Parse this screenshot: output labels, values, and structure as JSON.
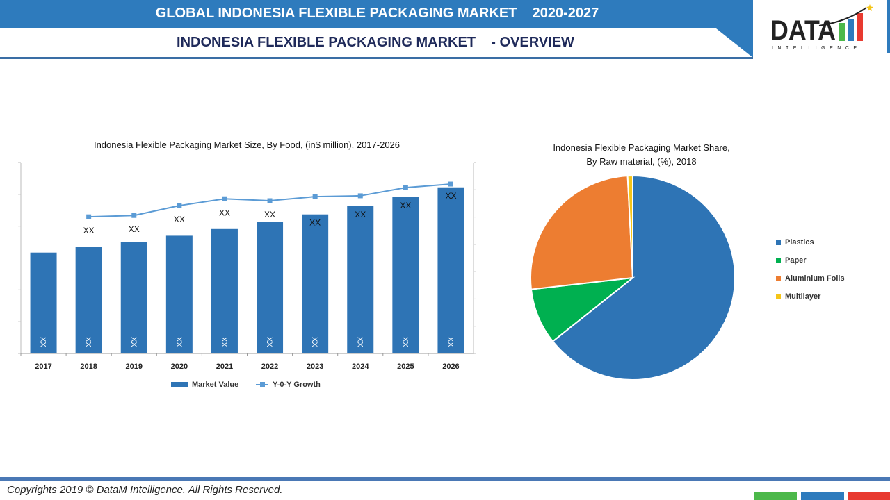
{
  "header": {
    "title": "GLOBAL INDONESIA FLEXIBLE PACKAGING MARKET    2020-2027",
    "subtitle": "INDONESIA FLEXIBLE PACKAGING MARKET    - OVERVIEW",
    "color": "#2e7bbd"
  },
  "logo": {
    "text": "DATA",
    "tagline": "INTELLIGENCE"
  },
  "footer": {
    "copyright": "Copyrights 2019 © DataM Intelligence. All Rights Reserved.",
    "blocks": [
      "#4cb84a",
      "#2e7bbd",
      "#e83a30"
    ]
  },
  "chart_data": [
    {
      "type": "bar",
      "title": "Indonesia Flexible Packaging Market Size, By Food, (in$ million), 2017-2026",
      "categories": [
        "2017",
        "2018",
        "2019",
        "2020",
        "2021",
        "2022",
        "2023",
        "2024",
        "2025",
        "2026"
      ],
      "ylim": [
        0,
        6
      ],
      "y2lim": [
        0,
        7
      ],
      "grid": false,
      "legend": "bottom",
      "series": [
        {
          "name": "Market Value",
          "type": "bar",
          "color": "#2e74b5",
          "values": [
            3.17,
            3.35,
            3.5,
            3.7,
            3.91,
            4.13,
            4.37,
            4.63,
            4.91,
            5.22
          ],
          "labels": [
            "XX",
            "XX",
            "XX",
            "XX",
            "XX",
            "XX",
            "XX",
            "XX",
            "XX",
            "XX"
          ]
        },
        {
          "name": "Y-0-Y Growth",
          "type": "line",
          "axis": "right",
          "color": "#5b9bd5",
          "values": [
            null,
            5.01,
            5.06,
            5.42,
            5.67,
            5.6,
            5.75,
            5.78,
            6.08,
            6.21
          ],
          "labels": [
            "",
            "XX",
            "XX",
            "XX",
            "XX",
            "XX",
            "XX",
            "XX",
            "XX",
            "XX"
          ]
        }
      ]
    },
    {
      "type": "pie",
      "title": "Indonesia Flexible Packaging Market Share,\nBy Raw material, (%), 2018",
      "legend": "right",
      "categories": [
        "Plastics",
        "Paper",
        "Aluminium Foils",
        "Multilayer"
      ],
      "values": [
        64.3,
        8.9,
        26.0,
        0.8
      ],
      "colors": [
        "#2e74b5",
        "#00b050",
        "#ed7d31",
        "#f5c518"
      ]
    }
  ]
}
